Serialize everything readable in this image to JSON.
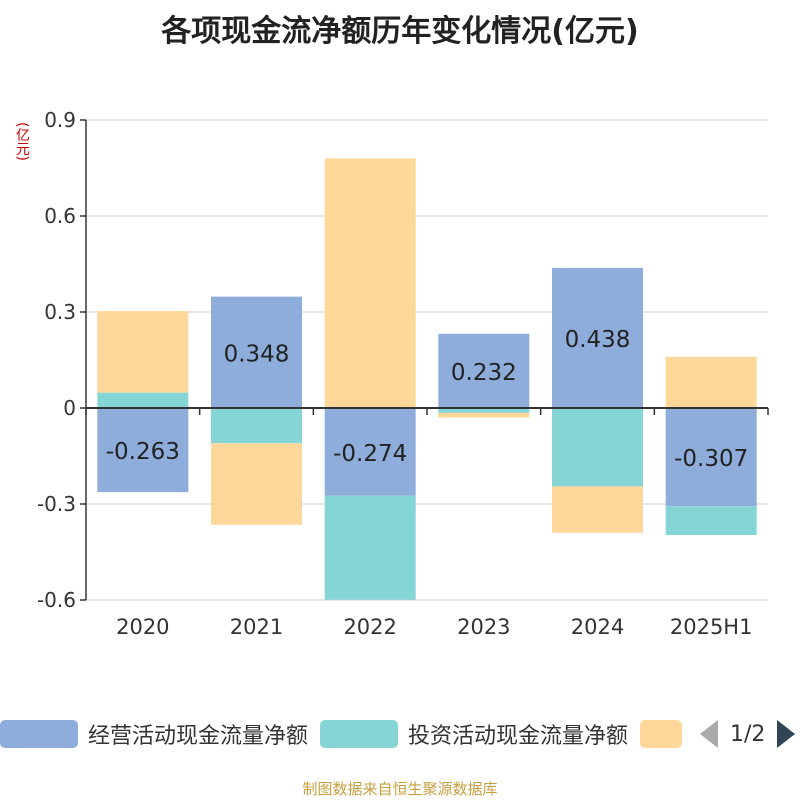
{
  "title": "各项现金流净额历年变化情况(亿元)",
  "unit_label": "(亿元)",
  "colors": {
    "operating": "#8eaddb",
    "investing": "#86d5d6",
    "financing": "#fdd89a"
  },
  "chart_data": {
    "type": "bar",
    "stacked": true,
    "categories": [
      "2020",
      "2021",
      "2022",
      "2023",
      "2024",
      "2025H1"
    ],
    "ylim": [
      -0.6,
      0.9
    ],
    "yticks": [
      -0.6,
      -0.3,
      0,
      0.3,
      0.6,
      0.9
    ],
    "ytick_labels": [
      "-0.6",
      "-0.3",
      "0",
      "0.3",
      "0.6",
      "0.9"
    ],
    "grid": true,
    "legend_position": "bottom",
    "series": [
      {
        "name": "经营活动现金流量净额",
        "values": [
          -0.263,
          0.348,
          -0.274,
          0.232,
          0.438,
          -0.307
        ],
        "labels": [
          "-0.263",
          "0.348",
          "-0.274",
          "0.232",
          "0.438",
          "-0.307"
        ]
      },
      {
        "name": "投资活动现金流量净额",
        "values": [
          0.048,
          -0.11,
          -0.325,
          -0.015,
          -0.245,
          -0.09
        ]
      },
      {
        "values": [
          0.255,
          -0.255,
          0.78,
          -0.015,
          -0.145,
          0.16
        ]
      }
    ]
  },
  "legend": {
    "items": [
      "经营活动现金流量净额",
      "投资活动现金流量净额",
      ""
    ],
    "page": "1/2"
  },
  "source": "制图数据来自恒生聚源数据库"
}
